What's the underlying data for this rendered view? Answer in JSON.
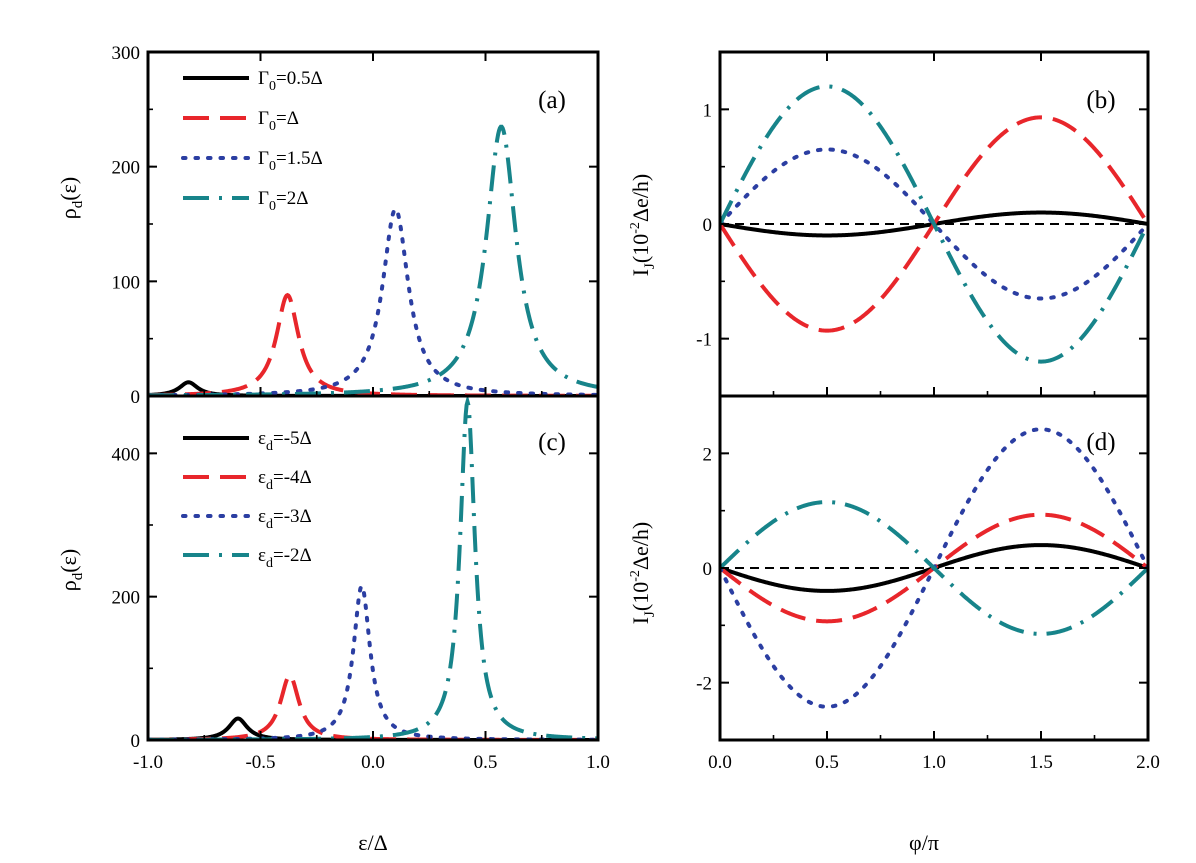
{
  "figure": {
    "xlabel_left": "ε/Δ",
    "xlabel_right": "φ/π",
    "ylabel_rho": {
      "main": "ρ",
      "sub": "d",
      "rest": "(ε)"
    },
    "ylabel_current": {
      "main": "I",
      "sub": "J",
      "pre": "(10",
      "sup": "-2",
      "post": "Δe/h)"
    }
  },
  "colors": {
    "black": "#000000",
    "red": "#e8262b",
    "blue": "#2b3ea2",
    "teal": "#17848a"
  },
  "chart_data": [
    {
      "id": "a",
      "panel_label": "(a)",
      "type": "line",
      "title": "",
      "xlabel": "",
      "ylabel": "ρd(ε)",
      "xlim": [
        -1.0,
        1.0
      ],
      "ylim": [
        0,
        300
      ],
      "xticks": [],
      "yticks": [
        0,
        100,
        200,
        300
      ],
      "ytick_labels": [
        "0",
        "100",
        "200",
        "300"
      ],
      "legend_position": "top-left",
      "series": [
        {
          "name": "Γ0=0.5Δ",
          "label_main": "Γ",
          "label_sub": "0",
          "label_rest": "=0.5Δ",
          "style": "solid",
          "color": "#000000",
          "curve": "lorentz",
          "center": -0.82,
          "height": 12,
          "width": 0.05
        },
        {
          "name": "Γ0=Δ",
          "label_main": "Γ",
          "label_sub": "0",
          "label_rest": "=Δ",
          "style": "dashed",
          "color": "#e8262b",
          "curve": "lorentz",
          "center": -0.38,
          "height": 88,
          "width": 0.06
        },
        {
          "name": "Γ0=1.5Δ",
          "label_main": "Γ",
          "label_sub": "0",
          "label_rest": "=1.5Δ",
          "style": "dotted",
          "color": "#2b3ea2",
          "curve": "lorentz",
          "center": 0.1,
          "height": 163,
          "width": 0.07
        },
        {
          "name": "Γ0=2Δ",
          "label_main": "Γ",
          "label_sub": "0",
          "label_rest": "=2Δ",
          "style": "dashdot",
          "color": "#17848a",
          "curve": "lorentz",
          "center": 0.57,
          "height": 235,
          "width": 0.08
        }
      ]
    },
    {
      "id": "b",
      "panel_label": "(b)",
      "type": "line",
      "title": "",
      "xlabel": "",
      "ylabel": "IJ(10^-2 Δe/h)",
      "xlim": [
        0.0,
        2.0
      ],
      "ylim": [
        -1.5,
        1.5
      ],
      "xticks": [],
      "yticks": [
        -1,
        0,
        1
      ],
      "ytick_labels": [
        "-1",
        "0",
        "1"
      ],
      "zero_line": true,
      "series": [
        {
          "name": "Γ0=0.5Δ",
          "style": "solid",
          "color": "#000000",
          "curve": "sine",
          "amplitude": -0.1
        },
        {
          "name": "Γ0=Δ",
          "style": "dashed",
          "color": "#e8262b",
          "curve": "sine",
          "amplitude": -0.93
        },
        {
          "name": "Γ0=1.5Δ",
          "style": "dotted",
          "color": "#2b3ea2",
          "curve": "sine",
          "amplitude": 0.65
        },
        {
          "name": "Γ0=2Δ",
          "style": "dashdot",
          "color": "#17848a",
          "curve": "sine",
          "amplitude": 1.2
        }
      ]
    },
    {
      "id": "c",
      "panel_label": "(c)",
      "type": "line",
      "title": "",
      "xlabel": "ε/Δ",
      "ylabel": "ρd(ε)",
      "xlim": [
        -1.0,
        1.0
      ],
      "ylim": [
        0,
        480
      ],
      "xticks": [
        -1.0,
        -0.5,
        0.0,
        0.5,
        1.0
      ],
      "xtick_labels": [
        "-1.0",
        "-0.5",
        "0.0",
        "0.5",
        "1.0"
      ],
      "yticks": [
        0,
        200,
        400
      ],
      "ytick_labels": [
        "0",
        "200",
        "400"
      ],
      "legend_position": "top-left",
      "series": [
        {
          "name": "εd=-5Δ",
          "label_main": "ε",
          "label_sub": "d",
          "label_rest": "=-5Δ",
          "style": "solid",
          "color": "#000000",
          "curve": "lorentz",
          "center": -0.6,
          "height": 30,
          "width": 0.05
        },
        {
          "name": "εd=-4Δ",
          "label_main": "ε",
          "label_sub": "d",
          "label_rest": "=-4Δ",
          "style": "dashed",
          "color": "#e8262b",
          "curve": "lorentz",
          "center": -0.37,
          "height": 90,
          "width": 0.05
        },
        {
          "name": "εd=-3Δ",
          "label_main": "ε",
          "label_sub": "d",
          "label_rest": "=-3Δ",
          "style": "dotted",
          "color": "#2b3ea2",
          "curve": "lorentz",
          "center": -0.05,
          "height": 215,
          "width": 0.045
        },
        {
          "name": "εd=-2Δ",
          "label_main": "ε",
          "label_sub": "d",
          "label_rest": "=-2Δ",
          "style": "dashdot",
          "color": "#17848a",
          "curve": "lorentz",
          "center": 0.42,
          "height": 472,
          "width": 0.04
        }
      ]
    },
    {
      "id": "d",
      "panel_label": "(d)",
      "type": "line",
      "title": "",
      "xlabel": "φ/π",
      "ylabel": "IJ(10^-2 Δe/h)",
      "xlim": [
        0.0,
        2.0
      ],
      "ylim": [
        -3,
        3
      ],
      "xticks": [
        0.0,
        0.5,
        1.0,
        1.5,
        2.0
      ],
      "xtick_labels": [
        "0.0",
        "0.5",
        "1.0",
        "1.5",
        "2.0"
      ],
      "yticks": [
        -2,
        0,
        2
      ],
      "ytick_labels": [
        "-2",
        "0",
        "2"
      ],
      "zero_line": true,
      "series": [
        {
          "name": "εd=-5Δ",
          "style": "solid",
          "color": "#000000",
          "curve": "sine",
          "amplitude": -0.4
        },
        {
          "name": "εd=-4Δ",
          "style": "dashed",
          "color": "#e8262b",
          "curve": "sine",
          "amplitude": -0.93
        },
        {
          "name": "εd=-3Δ",
          "style": "dotted",
          "color": "#2b3ea2",
          "curve": "sine",
          "amplitude": -2.42
        },
        {
          "name": "εd=-2Δ",
          "style": "dashdot",
          "color": "#17848a",
          "curve": "sine",
          "amplitude": 1.15
        }
      ]
    }
  ]
}
